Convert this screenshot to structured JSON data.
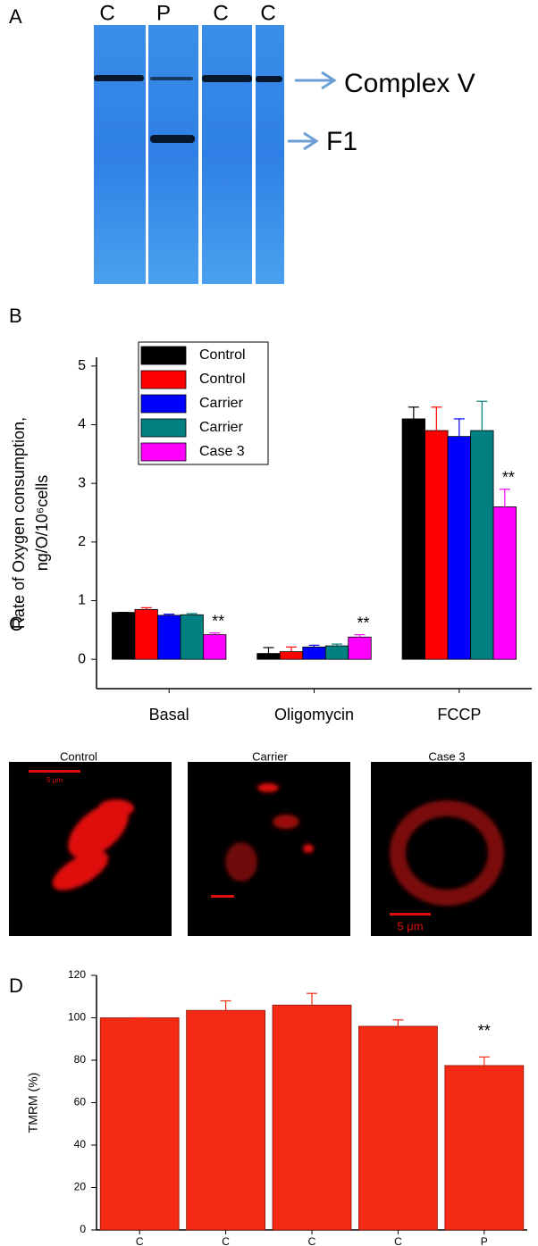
{
  "gel": {
    "label": "A",
    "lanes": [
      "C",
      "P",
      "C",
      "C"
    ],
    "bands": [
      "Complex V",
      "F1"
    ]
  },
  "chart_data": [
    {
      "type": "bar",
      "label": "B",
      "ylabel": [
        "Rate of Oxygen consumption,",
        "ng/O/10⁶cells"
      ],
      "categories": [
        "Basal",
        "Oligomycin",
        "FCCP"
      ],
      "series": [
        {
          "name": "Control",
          "color": "#000000",
          "values": [
            0.8,
            0.1,
            4.1
          ],
          "errors": [
            0,
            0.1,
            0.2
          ]
        },
        {
          "name": "Control",
          "color": "#ff0000",
          "values": [
            0.85,
            0.13,
            3.9
          ],
          "errors": [
            0.03,
            0.08,
            0.4
          ]
        },
        {
          "name": "Carrier",
          "color": "#0000ff",
          "values": [
            0.75,
            0.21,
            3.8
          ],
          "errors": [
            0.02,
            0.03,
            0.3
          ]
        },
        {
          "name": "Carrier",
          "color": "#008080",
          "values": [
            0.76,
            0.23,
            3.9
          ],
          "errors": [
            0.02,
            0.03,
            0.5
          ]
        },
        {
          "name": "Case 3",
          "color": "#ff00ff",
          "values": [
            0.42,
            0.38,
            2.6
          ],
          "errors": [
            0.03,
            0.04,
            0.3
          ],
          "annotations": [
            "**",
            "**",
            "**"
          ]
        }
      ],
      "ylim": [
        -0.5,
        5.15
      ],
      "yticks": [
        0,
        1,
        2,
        3,
        4,
        5
      ],
      "legend": "upper-left"
    },
    {
      "type": "bar",
      "label": "D",
      "ylabel": "TMRM (%)",
      "categories": [
        "C",
        "C",
        "C",
        "C",
        "P"
      ],
      "values": [
        100,
        103.5,
        106,
        96,
        77.5
      ],
      "errors": [
        0,
        4.5,
        5.5,
        3,
        4
      ],
      "annotations": [
        null,
        null,
        null,
        null,
        "**"
      ],
      "color": "#f52a15",
      "ylim": [
        0,
        120
      ],
      "yticks": [
        0,
        20,
        40,
        60,
        80,
        100,
        120
      ]
    }
  ],
  "micrographs": {
    "label": "C",
    "images": [
      {
        "title": "Control",
        "scale_label": "5 μm"
      },
      {
        "title": "Carrier"
      },
      {
        "title": "Case 3",
        "scale_label": "5 μm"
      }
    ]
  }
}
